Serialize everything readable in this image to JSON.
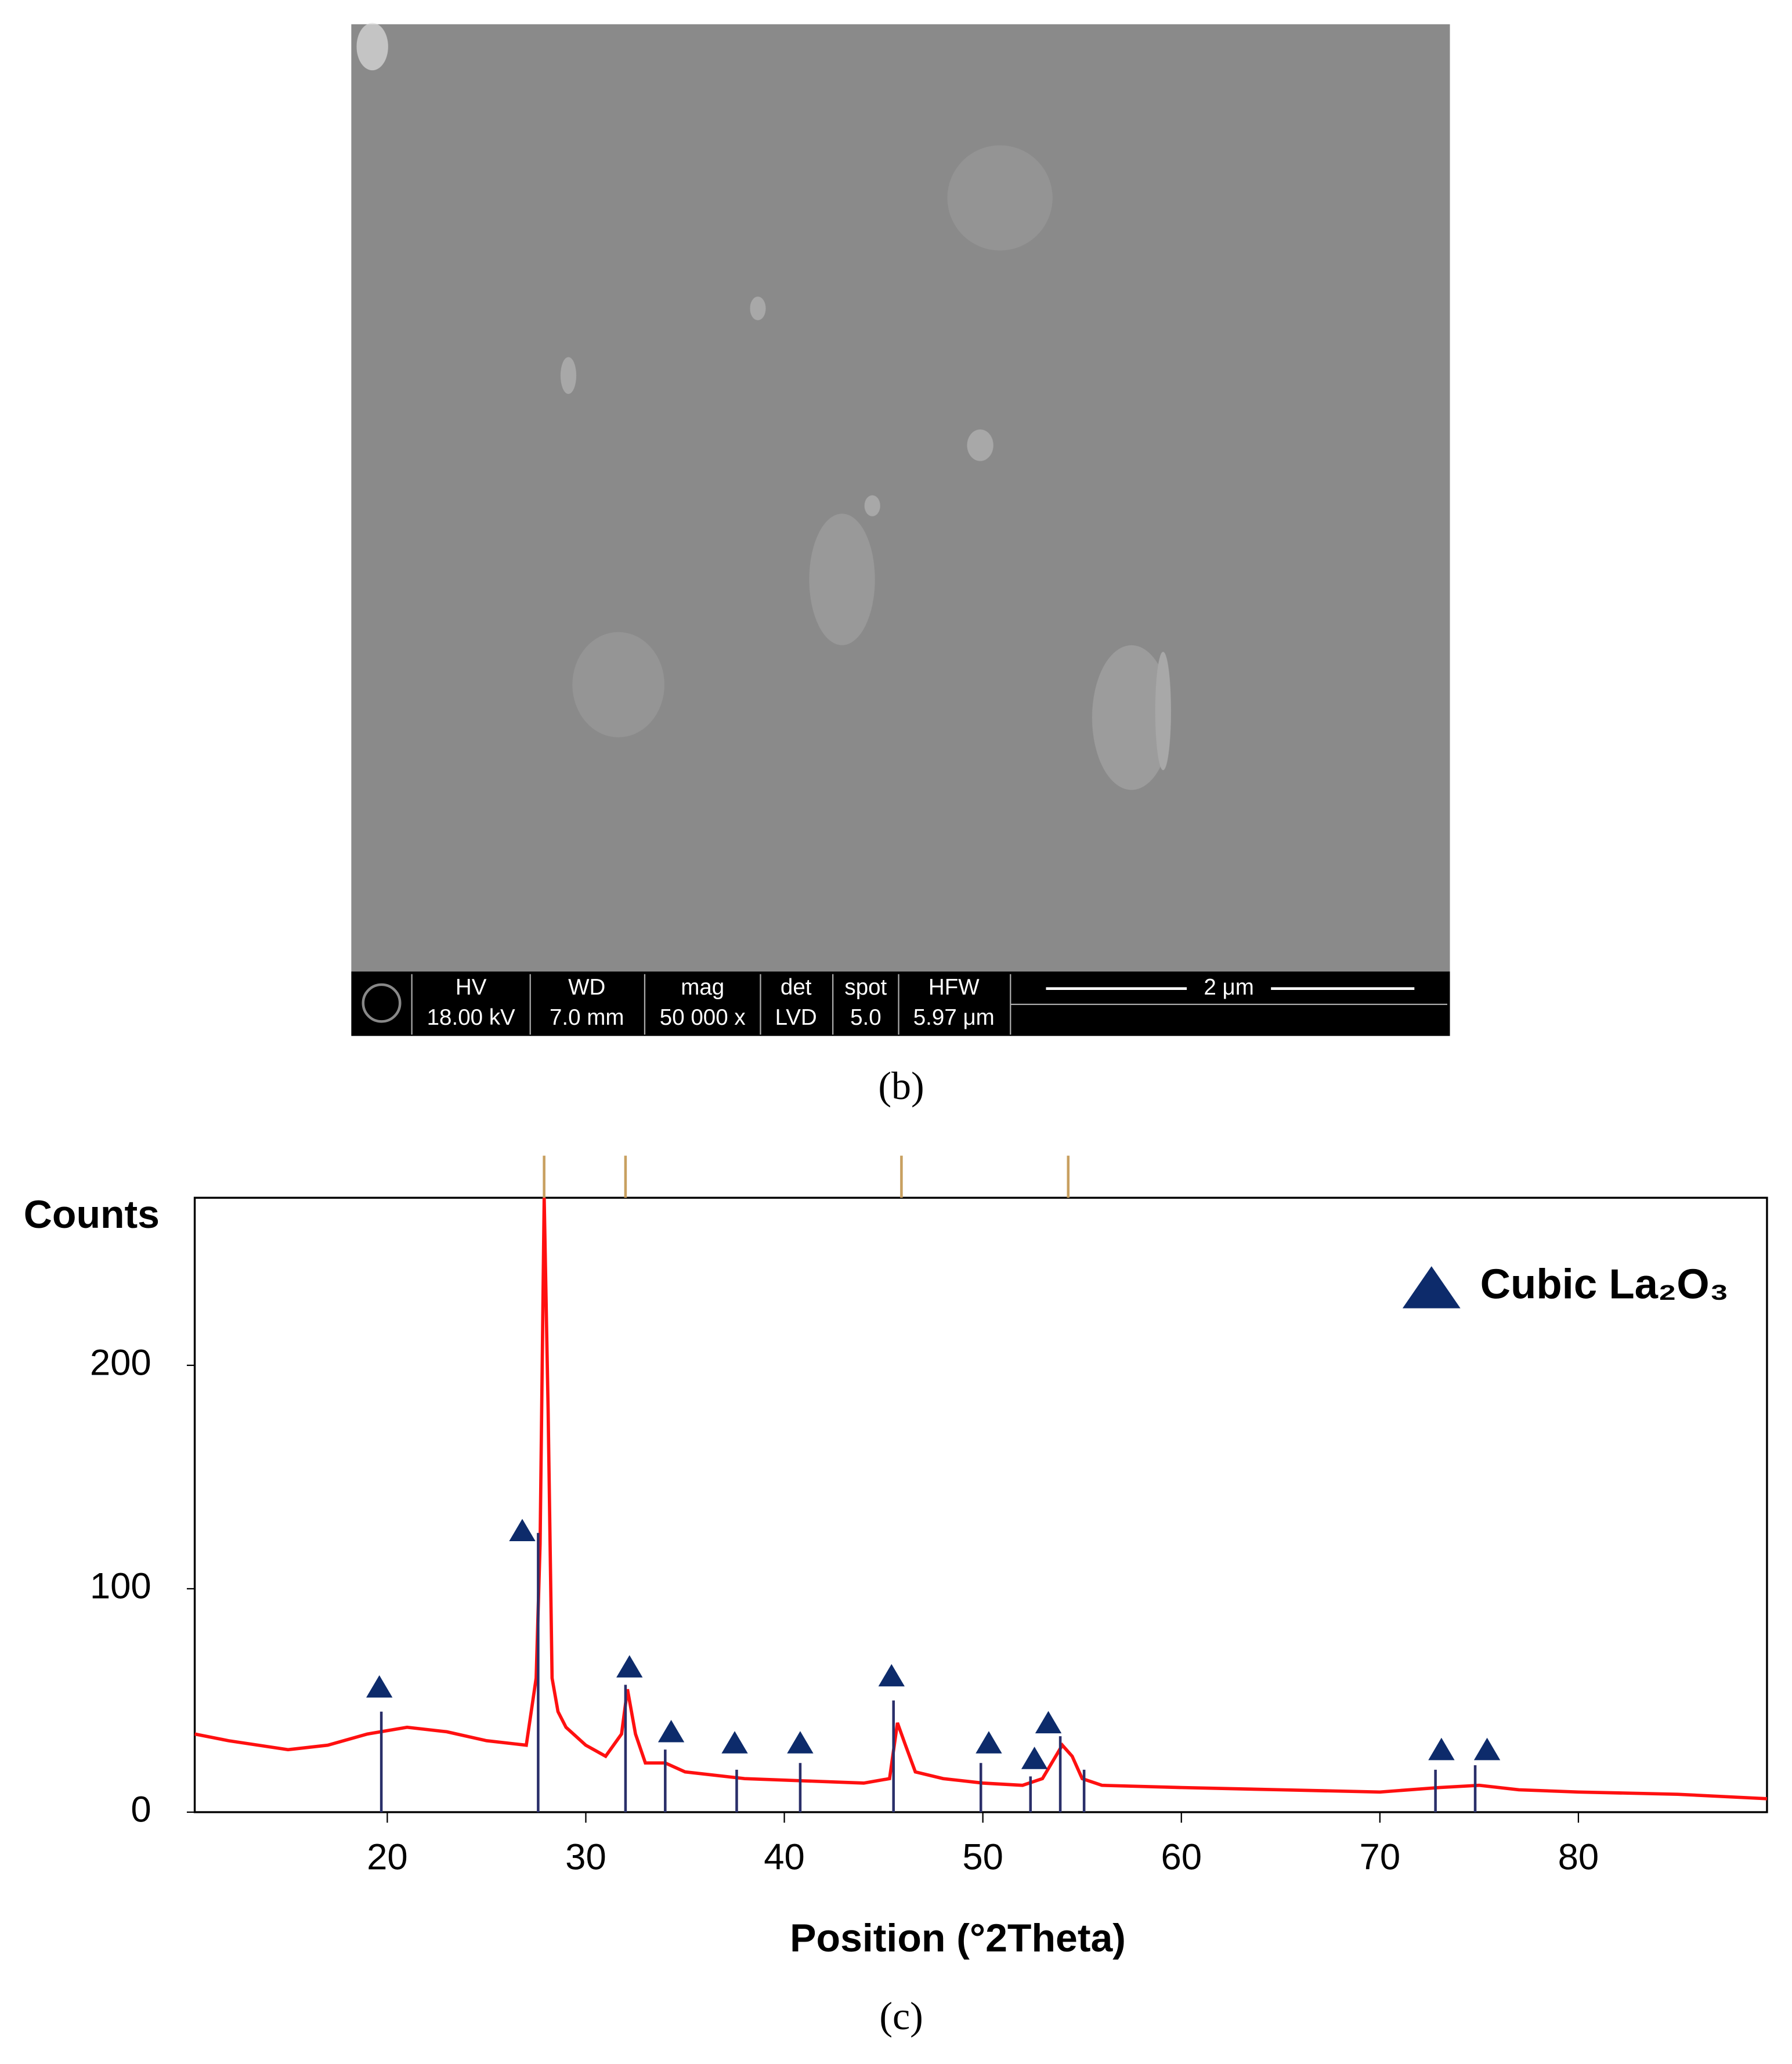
{
  "sem": {
    "labels": [
      "HV",
      "WD",
      "mag",
      "det",
      "spot",
      "HFW"
    ],
    "values": [
      "18.00 kV",
      "7.0 mm",
      "50 000 x",
      "LVD",
      "5.0",
      "5.97 μm"
    ],
    "scale_bar": "2 μm",
    "caption": "(b)"
  },
  "chart_data": {
    "type": "line",
    "caption": "(c)",
    "xlabel": "Position (°2Theta)",
    "ylabel": "Counts",
    "xlim": [
      10.3,
      89.5
    ],
    "ylim": [
      0,
      275
    ],
    "xticks": [
      20,
      30,
      40,
      50,
      60,
      70,
      80
    ],
    "yticks": [
      0,
      100,
      200
    ],
    "series": [
      {
        "type": "line",
        "color": "#ff1010",
        "x": [
          10.3,
          12,
          15,
          17,
          19,
          21,
          23,
          25,
          27,
          27.5,
          27.7,
          27.9,
          28.1,
          28.3,
          28.6,
          29,
          30,
          31,
          31.8,
          32.1,
          32.5,
          33,
          34,
          35,
          38,
          41,
          44,
          45.3,
          45.7,
          46.1,
          46.6,
          48,
          50,
          52,
          53,
          54,
          54.5,
          55,
          56,
          60,
          65,
          70,
          73,
          75,
          77,
          80,
          85,
          89.5
        ],
        "values": [
          35,
          32,
          28,
          30,
          35,
          38,
          36,
          32,
          30,
          60,
          120,
          275,
          180,
          60,
          45,
          38,
          30,
          25,
          35,
          55,
          35,
          22,
          22,
          18,
          15,
          14,
          13,
          15,
          40,
          30,
          18,
          15,
          13,
          12,
          15,
          30,
          25,
          15,
          12,
          11,
          10,
          9,
          11,
          12,
          10,
          9,
          8,
          6
        ]
      },
      {
        "type": "scatter",
        "name": "Cubic La₂O₃",
        "color": "#0d2b6b",
        "x": [
          19.6,
          26.8,
          32.2,
          34.3,
          37.5,
          40.8,
          45.4,
          50.3,
          52.6,
          53.3,
          73.1,
          75.4
        ],
        "values": [
          56,
          126,
          65,
          36,
          31,
          31,
          61,
          31,
          24,
          40,
          28,
          28
        ]
      },
      {
        "type": "stick",
        "color": "#2a2f6a",
        "x": [
          19.7,
          27.6,
          32.0,
          34.0,
          37.6,
          40.8,
          45.5,
          49.9,
          52.4,
          53.9,
          55.1,
          72.8,
          74.8
        ],
        "values": [
          45,
          125,
          57,
          28,
          19,
          22,
          50,
          22,
          16,
          34,
          19,
          19,
          21
        ]
      }
    ],
    "reference_positions": {
      "color": "#c8a060",
      "x": [
        27.9,
        32.0,
        45.9,
        54.3
      ]
    }
  }
}
